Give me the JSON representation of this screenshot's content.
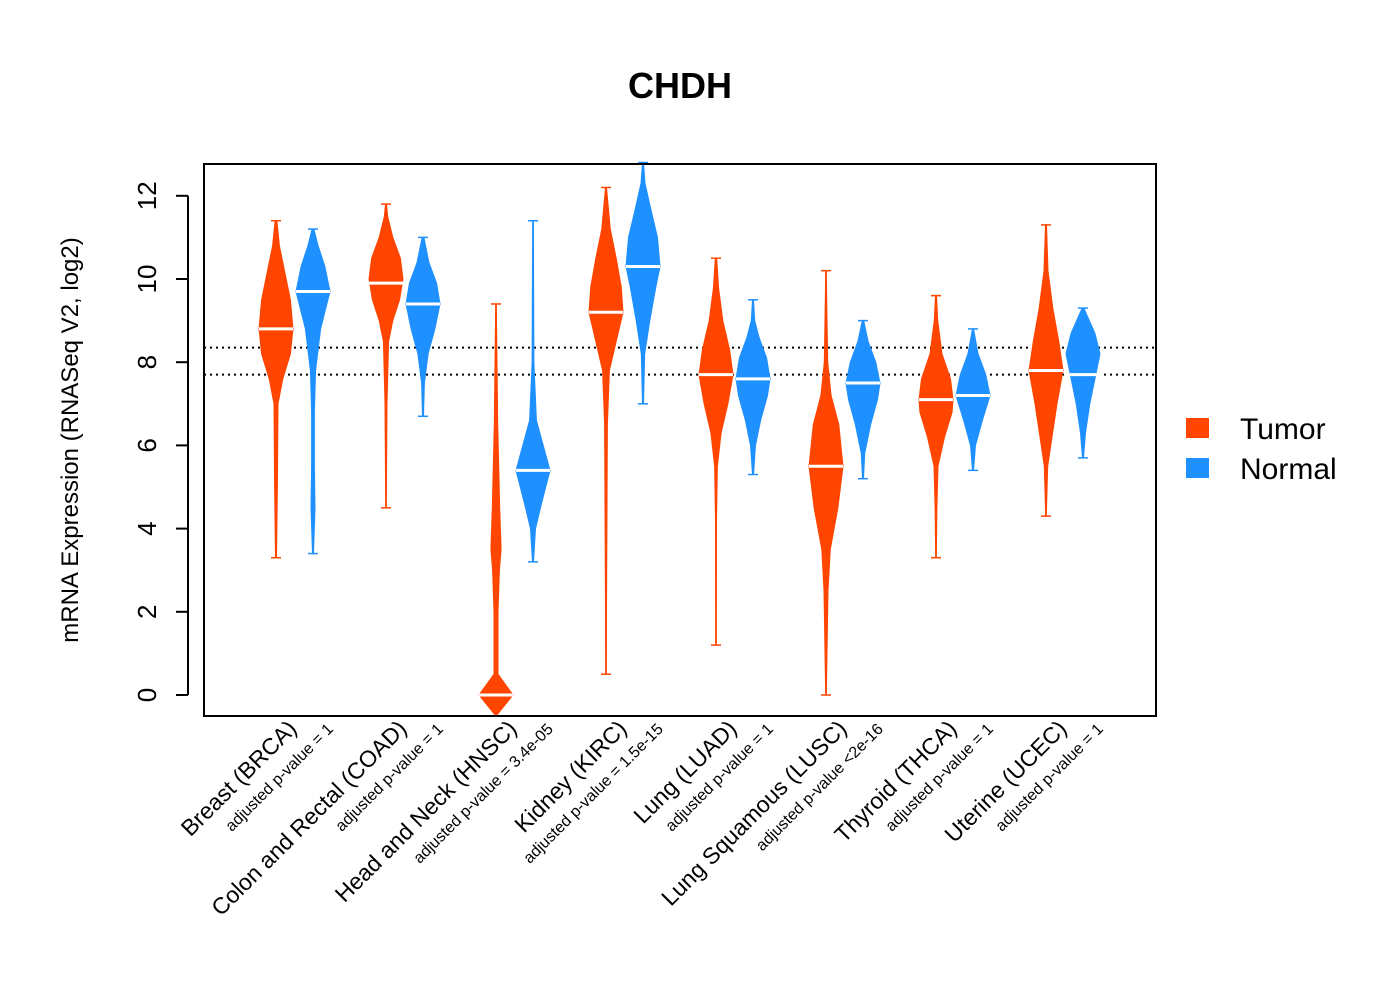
{
  "chart_data": {
    "type": "violin",
    "title": "CHDH",
    "ylabel": "mRNA Expression (RNASeq V2, log2)",
    "xlabel": "",
    "ylim": [
      -0.5,
      12.8
    ],
    "yticks": [
      0,
      2,
      4,
      6,
      8,
      10,
      12
    ],
    "reference_lines": [
      8.35,
      7.7
    ],
    "legend": {
      "position": "right",
      "entries": [
        {
          "name": "Tumor",
          "color": "#FF4500"
        },
        {
          "name": "Normal",
          "color": "#1E90FF"
        }
      ]
    },
    "categories": [
      {
        "label": "Breast (BRCA)",
        "pvalue": "adjusted p-value = 1"
      },
      {
        "label": "Colon and Rectal (COAD)",
        "pvalue": "adjusted p-value = 1"
      },
      {
        "label": "Head and Neck (HNSC)",
        "pvalue": "adjusted p-value = 3.4e-05"
      },
      {
        "label": "Kidney (KIRC)",
        "pvalue": "adjusted p-value = 1.5e-15"
      },
      {
        "label": "Lung (LUAD)",
        "pvalue": "adjusted p-value = 1"
      },
      {
        "label": "Lung Squamous (LUSC)",
        "pvalue": "adjusted p-value <2e-16"
      },
      {
        "label": "Thyroid (THCA)",
        "pvalue": "adjusted p-value = 1"
      },
      {
        "label": "Uterine (UCEC)",
        "pvalue": "adjusted p-value = 1"
      }
    ],
    "series": [
      {
        "name": "Tumor",
        "color": "#FF4500",
        "violins": [
          {
            "median": 8.8,
            "min": 3.3,
            "max": 11.4,
            "profile": [
              [
                3.3,
                0.03
              ],
              [
                5.0,
                0.08
              ],
              [
                7.0,
                0.12
              ],
              [
                7.6,
                0.4
              ],
              [
                8.2,
                0.85
              ],
              [
                8.8,
                1.0
              ],
              [
                9.5,
                0.85
              ],
              [
                10.2,
                0.5
              ],
              [
                10.8,
                0.2
              ],
              [
                11.4,
                0.05
              ]
            ]
          },
          {
            "median": 9.9,
            "min": 4.5,
            "max": 11.8,
            "profile": [
              [
                4.5,
                0.02
              ],
              [
                7.0,
                0.06
              ],
              [
                8.5,
                0.15
              ],
              [
                9.0,
                0.4
              ],
              [
                9.5,
                0.8
              ],
              [
                10.0,
                1.0
              ],
              [
                10.5,
                0.85
              ],
              [
                11.0,
                0.4
              ],
              [
                11.5,
                0.1
              ],
              [
                11.8,
                0.03
              ]
            ]
          },
          {
            "median": 0.0,
            "min": -0.5,
            "max": 9.4,
            "profile": [
              [
                -0.5,
                0.02
              ],
              [
                0.0,
                1.0
              ],
              [
                0.5,
                0.12
              ],
              [
                2.0,
                0.12
              ],
              [
                3.0,
                0.2
              ],
              [
                3.5,
                0.3
              ],
              [
                4.5,
                0.22
              ],
              [
                5.5,
                0.16
              ],
              [
                6.5,
                0.1
              ],
              [
                8.0,
                0.06
              ],
              [
                9.4,
                0.02
              ]
            ]
          },
          {
            "median": 9.2,
            "min": 0.5,
            "max": 12.2,
            "profile": [
              [
                0.5,
                0.02
              ],
              [
                2.0,
                0.03
              ],
              [
                4.0,
                0.05
              ],
              [
                6.5,
                0.08
              ],
              [
                7.8,
                0.2
              ],
              [
                8.5,
                0.6
              ],
              [
                9.2,
                1.0
              ],
              [
                9.8,
                0.9
              ],
              [
                10.5,
                0.6
              ],
              [
                11.2,
                0.25
              ],
              [
                12.2,
                0.03
              ]
            ]
          },
          {
            "median": 7.7,
            "min": 1.2,
            "max": 10.5,
            "profile": [
              [
                1.2,
                0.02
              ],
              [
                4.2,
                0.03
              ],
              [
                5.5,
                0.08
              ],
              [
                6.3,
                0.3
              ],
              [
                7.0,
                0.7
              ],
              [
                7.7,
                1.0
              ],
              [
                8.3,
                0.8
              ],
              [
                9.0,
                0.4
              ],
              [
                9.8,
                0.15
              ],
              [
                10.5,
                0.04
              ]
            ]
          },
          {
            "median": 5.5,
            "min": 0.0,
            "max": 10.2,
            "profile": [
              [
                0.0,
                0.02
              ],
              [
                1.0,
                0.06
              ],
              [
                2.5,
                0.12
              ],
              [
                3.5,
                0.25
              ],
              [
                4.5,
                0.7
              ],
              [
                5.5,
                1.0
              ],
              [
                6.5,
                0.75
              ],
              [
                7.2,
                0.3
              ],
              [
                8.0,
                0.1
              ],
              [
                9.5,
                0.04
              ],
              [
                10.2,
                0.02
              ]
            ]
          },
          {
            "median": 7.1,
            "min": 3.3,
            "max": 9.6,
            "profile": [
              [
                3.3,
                0.02
              ],
              [
                4.5,
                0.05
              ],
              [
                5.5,
                0.12
              ],
              [
                6.2,
                0.5
              ],
              [
                6.8,
                0.95
              ],
              [
                7.1,
                1.0
              ],
              [
                7.6,
                0.85
              ],
              [
                8.2,
                0.35
              ],
              [
                9.0,
                0.1
              ],
              [
                9.6,
                0.03
              ]
            ]
          },
          {
            "median": 7.8,
            "min": 4.3,
            "max": 11.3,
            "profile": [
              [
                4.3,
                0.02
              ],
              [
                5.5,
                0.1
              ],
              [
                6.2,
                0.35
              ],
              [
                7.0,
                0.65
              ],
              [
                7.8,
                1.0
              ],
              [
                8.5,
                0.75
              ],
              [
                9.3,
                0.4
              ],
              [
                10.2,
                0.12
              ],
              [
                11.3,
                0.03
              ]
            ]
          }
        ]
      },
      {
        "name": "Normal",
        "color": "#1E90FF",
        "violins": [
          {
            "median": 9.7,
            "min": 3.4,
            "max": 11.2,
            "profile": [
              [
                3.4,
                0.03
              ],
              [
                4.5,
                0.12
              ],
              [
                5.5,
                0.08
              ],
              [
                6.8,
                0.08
              ],
              [
                7.8,
                0.15
              ],
              [
                8.8,
                0.45
              ],
              [
                9.7,
                1.0
              ],
              [
                10.3,
                0.7
              ],
              [
                10.8,
                0.3
              ],
              [
                11.2,
                0.05
              ]
            ]
          },
          {
            "median": 9.4,
            "min": 6.7,
            "max": 11.0,
            "profile": [
              [
                6.7,
                0.03
              ],
              [
                7.5,
                0.08
              ],
              [
                8.2,
                0.3
              ],
              [
                8.8,
                0.7
              ],
              [
                9.4,
                1.0
              ],
              [
                9.9,
                0.8
              ],
              [
                10.4,
                0.35
              ],
              [
                11.0,
                0.05
              ]
            ]
          },
          {
            "median": 5.4,
            "min": 3.2,
            "max": 11.4,
            "profile": [
              [
                3.2,
                0.03
              ],
              [
                4.0,
                0.15
              ],
              [
                4.6,
                0.5
              ],
              [
                5.4,
                1.0
              ],
              [
                6.0,
                0.6
              ],
              [
                6.6,
                0.2
              ],
              [
                8.0,
                0.05
              ],
              [
                9.5,
                0.04
              ],
              [
                11.4,
                0.02
              ]
            ]
          },
          {
            "median": 10.3,
            "min": 7.0,
            "max": 12.8,
            "profile": [
              [
                7.0,
                0.03
              ],
              [
                8.2,
                0.1
              ],
              [
                9.0,
                0.4
              ],
              [
                9.8,
                0.75
              ],
              [
                10.3,
                1.0
              ],
              [
                11.0,
                0.85
              ],
              [
                11.7,
                0.45
              ],
              [
                12.3,
                0.12
              ],
              [
                12.8,
                0.03
              ]
            ]
          },
          {
            "median": 7.6,
            "min": 5.3,
            "max": 9.5,
            "profile": [
              [
                5.3,
                0.03
              ],
              [
                6.0,
                0.15
              ],
              [
                6.6,
                0.45
              ],
              [
                7.2,
                0.85
              ],
              [
                7.6,
                1.0
              ],
              [
                8.1,
                0.8
              ],
              [
                8.6,
                0.35
              ],
              [
                9.0,
                0.1
              ],
              [
                9.5,
                0.03
              ]
            ]
          },
          {
            "median": 7.5,
            "min": 5.2,
            "max": 9.0,
            "profile": [
              [
                5.2,
                0.03
              ],
              [
                5.8,
                0.1
              ],
              [
                6.5,
                0.45
              ],
              [
                7.1,
                0.85
              ],
              [
                7.5,
                1.0
              ],
              [
                8.0,
                0.75
              ],
              [
                8.5,
                0.3
              ],
              [
                9.0,
                0.04
              ]
            ]
          },
          {
            "median": 7.2,
            "min": 5.4,
            "max": 8.8,
            "profile": [
              [
                5.4,
                0.03
              ],
              [
                6.0,
                0.15
              ],
              [
                6.6,
                0.55
              ],
              [
                7.2,
                1.0
              ],
              [
                7.7,
                0.75
              ],
              [
                8.2,
                0.3
              ],
              [
                8.8,
                0.03
              ]
            ]
          },
          {
            "median": 7.7,
            "min": 5.7,
            "max": 9.3,
            "profile": [
              [
                5.7,
                0.03
              ],
              [
                6.3,
                0.15
              ],
              [
                7.0,
                0.4
              ],
              [
                7.7,
                0.75
              ],
              [
                8.2,
                1.0
              ],
              [
                8.7,
                0.7
              ],
              [
                9.3,
                0.05
              ]
            ]
          }
        ]
      }
    ]
  }
}
